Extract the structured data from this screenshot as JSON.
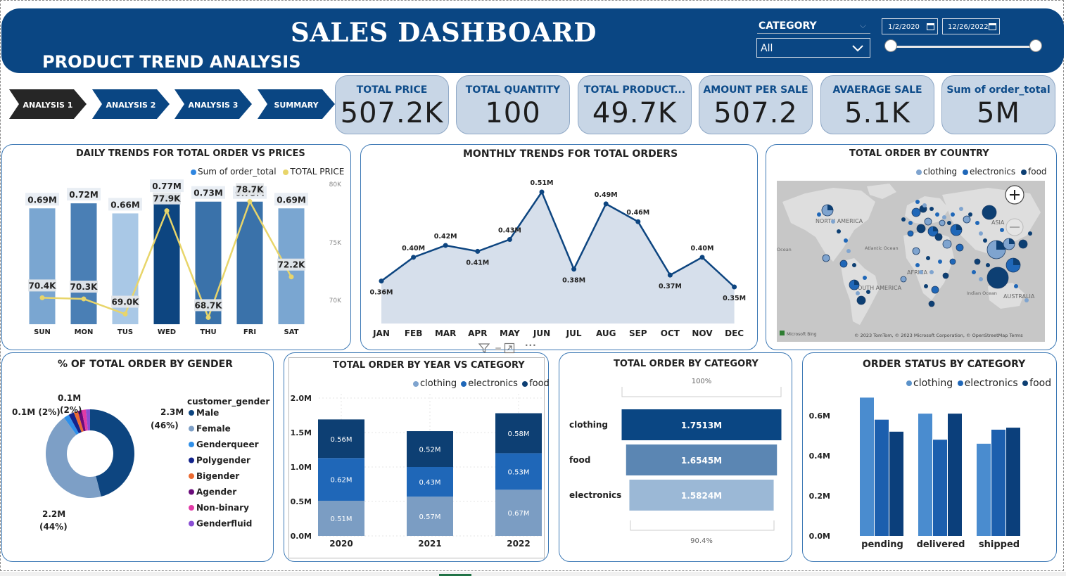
{
  "header": {
    "title": "SALES DASHBOARD",
    "subtitle": "PRODUCT TREND ANALYSIS",
    "category_label": "CATEGORY",
    "category_value": "All",
    "date_start": "1/2/2020",
    "date_end": "12/26/2022"
  },
  "nav": [
    {
      "label": "ANALYSIS 1",
      "active": true
    },
    {
      "label": "ANALYSIS 2",
      "active": false
    },
    {
      "label": "ANALYSIS 3",
      "active": false
    },
    {
      "label": "SUMMARY",
      "active": false
    }
  ],
  "kpis": [
    {
      "label": "TOTAL PRICE",
      "value": "507.2K"
    },
    {
      "label": "TOTAL QUANTITY",
      "value": "100"
    },
    {
      "label": "TOTAL PRODUCT...",
      "value": "49.7K"
    },
    {
      "label": "AMOUNT PER SALE",
      "value": "507.2"
    },
    {
      "label": "AVAERAGE SALE",
      "value": "5.1K"
    },
    {
      "label": "Sum of order_total",
      "value": "5M"
    }
  ],
  "colors": {
    "navy": "#0a4683",
    "clothing": "#5b92c9",
    "electronics": "#1f67b8",
    "food": "#0d3f73",
    "price_line": "#e8d56a"
  },
  "daily": {
    "title": "DAILY TRENDS FOR TOTAL ORDER VS PRICES",
    "legend": [
      "Sum of order_total",
      "TOTAL PRICE"
    ],
    "right_axis": [
      "80K",
      "75K",
      "70K"
    ],
    "chart_data": {
      "type": "bar",
      "categories": [
        "SUN",
        "MON",
        "TUS",
        "WED",
        "THU",
        "FRI",
        "SAT"
      ],
      "series": [
        {
          "name": "Sum of order_total",
          "values": [
            0.69,
            0.72,
            0.66,
            0.77,
            0.73,
            0.73,
            0.69
          ],
          "labels": [
            "0.69M",
            "0.72M",
            "0.66M",
            "0.77M",
            "0.73M",
            "0.73M",
            "0.69M"
          ]
        },
        {
          "name": "TOTAL PRICE",
          "values": [
            70.4,
            70.3,
            69.0,
            77.9,
            68.7,
            78.7,
            72.2
          ],
          "labels": [
            "70.4K",
            "70.3K",
            "69.0K",
            "77.9K",
            "68.7K",
            "78.7K",
            "72.2K"
          ]
        }
      ],
      "bar_colors": [
        "#7aa6d1",
        "#4a7fb5",
        "#a9c8e6",
        "#0d4580",
        "#3a72aa",
        "#3a72aa",
        "#7aa6d1"
      ]
    }
  },
  "monthly": {
    "title": "MONTHLY TRENDS FOR TOTAL ORDERS",
    "chart_data": {
      "type": "area",
      "categories": [
        "JAN",
        "FEB",
        "MAR",
        "APR",
        "MAY",
        "JUN",
        "JUL",
        "AUG",
        "SEP",
        "OCT",
        "NOV",
        "DEC"
      ],
      "values": [
        0.36,
        0.4,
        0.42,
        0.41,
        0.43,
        0.51,
        0.38,
        0.49,
        0.46,
        0.37,
        0.4,
        0.35
      ],
      "labels": [
        "0.36M",
        "0.40M",
        "0.42M",
        "0.41M",
        "0.43M",
        "0.51M",
        "0.38M",
        "0.49M",
        "0.46M",
        "0.37M",
        "0.40M",
        "0.35M"
      ]
    }
  },
  "country": {
    "title": "TOTAL ORDER BY COUNTRY",
    "legend": [
      "clothing",
      "electronics",
      "food"
    ],
    "map_labels": [
      "NORTH AMERICA",
      "Atlantic Ocean",
      "SOUTH AMERICA",
      "AFRICA",
      "ASIA",
      "Indian Ocean",
      "AUSTRALIA",
      "Ocean"
    ],
    "credit": "© 2023 TomTom, © 2023 Microsoft Corporation, © OpenStreetMap  Terms",
    "bing": "Microsoft Bing"
  },
  "gender": {
    "title": "% OF TOTAL ORDER BY GENDER",
    "legend_title": "customer_gender",
    "chart_data": {
      "type": "pie",
      "categories": [
        "Male",
        "Female",
        "Genderqueer",
        "Polygender",
        "Bigender",
        "Agender",
        "Non-binary",
        "Genderfluid"
      ],
      "values": [
        46,
        44,
        2,
        2,
        1.5,
        1.5,
        1.5,
        1.5
      ],
      "colors": [
        "#0d4580",
        "#7d9fc6",
        "#2f8fe8",
        "#13238c",
        "#ec6a30",
        "#6a0b7a",
        "#e23ba7",
        "#8a4fd4"
      ]
    },
    "labels": [
      "2.3M",
      "(46%)",
      "2.2M",
      "(44%)",
      "0.1M (2%)",
      "0.1M",
      "(2%)"
    ]
  },
  "year": {
    "title": "TOTAL ORDER BY YEAR VS CATEGORY",
    "legend": [
      "clothing",
      "electronics",
      "food"
    ],
    "y_ticks": [
      "2.0M",
      "1.5M",
      "1.0M",
      "0.5M",
      "0.0M"
    ],
    "chart_data": {
      "type": "bar",
      "stacked": true,
      "categories": [
        "2020",
        "2021",
        "2022"
      ],
      "series": [
        {
          "name": "clothing",
          "values": [
            0.51,
            0.57,
            0.67
          ],
          "labels": [
            "0.51M",
            "0.57M",
            "0.67M"
          ]
        },
        {
          "name": "electronics",
          "values": [
            0.62,
            0.43,
            0.53
          ],
          "labels": [
            "0.62M",
            "0.43M",
            "0.53M"
          ]
        },
        {
          "name": "food",
          "values": [
            0.56,
            0.52,
            0.58
          ],
          "labels": [
            "0.56M",
            "0.52M",
            "0.58M"
          ]
        }
      ],
      "ylim": [
        0,
        2.0
      ]
    }
  },
  "funnel": {
    "title": "TOTAL ORDER BY CATEGORY",
    "top_pct": "100%",
    "bottom_pct": "90.4%",
    "chart_data": {
      "type": "bar",
      "categories": [
        "clothing",
        "food",
        "electronics"
      ],
      "values": [
        1.7513,
        1.6545,
        1.5824
      ],
      "labels": [
        "1.7513M",
        "1.6545M",
        "1.5824M"
      ],
      "colors": [
        "#0a4683",
        "#5b86b3",
        "#9bb8d6"
      ]
    }
  },
  "status": {
    "title": "ORDER STATUS BY CATEGORY",
    "legend": [
      "clothing",
      "electronics",
      "food"
    ],
    "y_ticks": [
      "0.6M",
      "0.4M",
      "0.2M",
      "0.0M"
    ],
    "chart_data": {
      "type": "bar",
      "categories": [
        "pending",
        "delivered",
        "shipped"
      ],
      "series": [
        {
          "name": "clothing",
          "values": [
            0.69,
            0.61,
            0.46
          ]
        },
        {
          "name": "electronics",
          "values": [
            0.58,
            0.48,
            0.53
          ]
        },
        {
          "name": "food",
          "values": [
            0.52,
            0.61,
            0.54
          ]
        }
      ],
      "ylim": [
        0,
        0.75
      ]
    }
  }
}
